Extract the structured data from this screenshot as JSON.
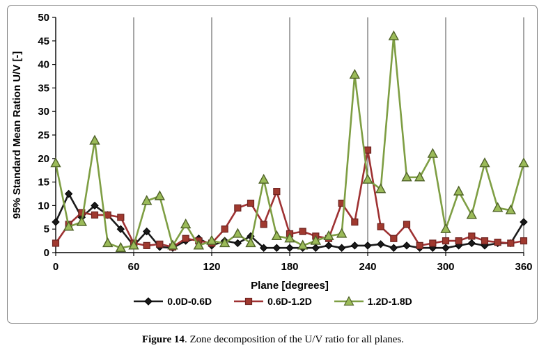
{
  "figure": {
    "caption_bold": "Figure 14",
    "caption_rest": ". Zone decomposition of the U/V ratio for all planes."
  },
  "chart_data": {
    "type": "line",
    "title": "",
    "xlabel": "Plane [degrees]",
    "ylabel": "95% Standard Mean Ration U/V [-]",
    "xlim": [
      0,
      360
    ],
    "ylim": [
      0,
      50
    ],
    "xticks": [
      0,
      60,
      120,
      180,
      240,
      300,
      360
    ],
    "ytick_step": 5,
    "grid": "vertical",
    "legend_position": "bottom",
    "x": [
      0,
      10,
      20,
      30,
      40,
      50,
      60,
      70,
      80,
      90,
      100,
      110,
      120,
      130,
      140,
      150,
      160,
      170,
      180,
      190,
      200,
      210,
      220,
      230,
      240,
      250,
      260,
      270,
      280,
      290,
      300,
      310,
      320,
      330,
      340,
      350,
      360
    ],
    "series": [
      {
        "name": "0.0D-0.6D",
        "marker": "diamond",
        "line_color": "#1a1a1a",
        "marker_fill": "#1a1a1a",
        "marker_stroke": "#000000",
        "values": [
          6.5,
          12.5,
          7.5,
          10,
          8,
          5,
          1.5,
          4.5,
          1.2,
          1,
          2.5,
          3,
          1.5,
          2.5,
          2,
          3.5,
          1,
          1,
          1,
          1,
          1,
          1.5,
          1,
          1.5,
          1.5,
          1.8,
          1,
          1.5,
          1,
          1,
          1,
          1.5,
          2,
          1.5,
          2,
          2,
          6.5
        ]
      },
      {
        "name": "0.6D-1.2D",
        "marker": "square",
        "line_color": "#9e3132",
        "marker_fill": "#a0392f",
        "marker_stroke": "#6d2320",
        "values": [
          2,
          6,
          8.5,
          8,
          8,
          7.5,
          2,
          1.5,
          1.8,
          1.2,
          3,
          2.5,
          2,
          5,
          9.5,
          10.5,
          6,
          13,
          4,
          4.5,
          3.5,
          3,
          10.5,
          6.5,
          21.8,
          5.5,
          3,
          6,
          1.5,
          2,
          2.5,
          2.5,
          3.5,
          2.5,
          2.2,
          2,
          2.5
        ]
      },
      {
        "name": "1.2D-1.8D",
        "marker": "triangle",
        "line_color": "#7e9e43",
        "marker_fill": "#9bbb59",
        "marker_stroke": "#4f6228",
        "values": [
          19,
          5.5,
          6.5,
          23.8,
          2,
          1,
          1.5,
          11,
          12,
          1.5,
          6,
          1.5,
          2.5,
          2,
          4,
          2,
          15.5,
          3.5,
          3,
          1.5,
          2.5,
          3.5,
          4,
          37.8,
          15.5,
          13.5,
          46,
          16,
          16,
          21,
          5,
          13,
          8,
          19,
          9.5,
          9,
          19
        ]
      }
    ]
  }
}
